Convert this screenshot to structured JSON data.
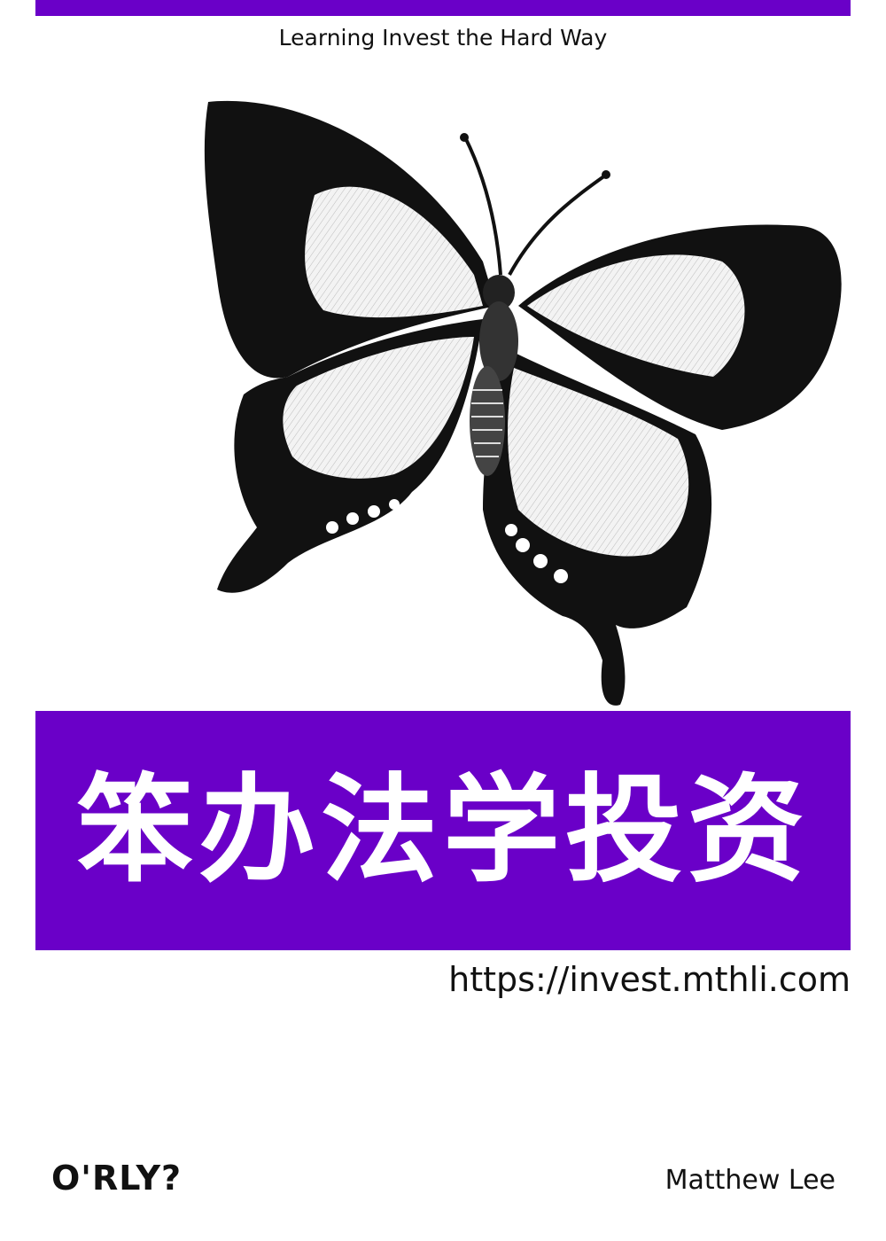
{
  "colors": {
    "accent": "#6a00c8",
    "ink": "#111111",
    "background": "#ffffff"
  },
  "cover": {
    "tagline": "Learning Invest the Hard Way",
    "illustration": "butterfly-illustration",
    "title": "笨办法学投资",
    "url": "https://invest.mthli.com",
    "brand": "O'RLY?",
    "author": "Matthew Lee"
  }
}
